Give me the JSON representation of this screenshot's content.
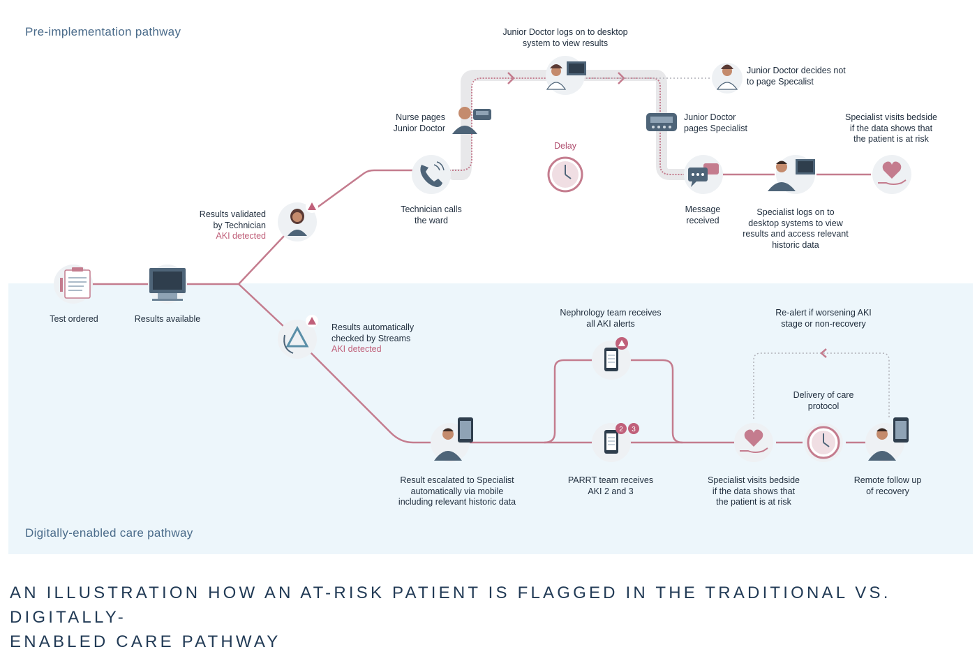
{
  "sections": {
    "pre_title": "Pre-implementation pathway",
    "digital_title": "Digitally-enabled care pathway"
  },
  "colors": {
    "path": "#c47c8e",
    "path_bg": "#e8e8ea",
    "panel_bg": "#edf6fb",
    "accent": "#c0607a",
    "icon_circle": "#eef1f4"
  },
  "common": {
    "test_ordered": "Test ordered",
    "results_available": "Results available"
  },
  "pre": {
    "validated": [
      "Results validated",
      "by Technician"
    ],
    "validated_aki": "AKI detected",
    "technician_calls": [
      "Technician calls",
      "the ward"
    ],
    "nurse_pages": [
      "Nurse pages",
      "Junior Doctor"
    ],
    "jd_logs": [
      "Junior Doctor logs on to desktop",
      "system to view results"
    ],
    "jd_decides": [
      "Junior Doctor decides not",
      "to page Specalist"
    ],
    "jd_pages": [
      "Junior Doctor",
      "pages Specialist"
    ],
    "delay": "Delay",
    "message_received": [
      "Message",
      "received"
    ],
    "specialist_logs": [
      "Specialist logs on to",
      "desktop systems to view",
      "results and access relevant",
      "historic data"
    ],
    "specialist_visits": [
      "Specialist visits bedside",
      "if the data shows that",
      "the patient is at risk"
    ]
  },
  "digital": {
    "auto_checked": [
      "Results automatically",
      "checked by Streams"
    ],
    "auto_aki": "AKI detected",
    "escalated": [
      "Result escalated to Specialist",
      "automatically via mobile",
      "including relevant historic data"
    ],
    "nephrology": [
      "Nephrology team receives",
      "all AKI alerts"
    ],
    "parrt": [
      "PARRT team receives",
      "AKI 2 and 3"
    ],
    "parrt_badges": [
      "2",
      "3"
    ],
    "realert": [
      "Re-alert if worsening AKI",
      "stage or non-recovery"
    ],
    "delivery": [
      "Delivery of care",
      "protocol"
    ],
    "specialist_visits": [
      "Specialist visits bedside",
      "if the data shows that",
      "the patient is at risk"
    ],
    "remote": [
      "Remote follow up",
      "of recovery"
    ]
  },
  "caption": [
    "An illustration how an at-risk patient is flagged in the traditional vs. digitally-",
    "enabled care pathway"
  ]
}
